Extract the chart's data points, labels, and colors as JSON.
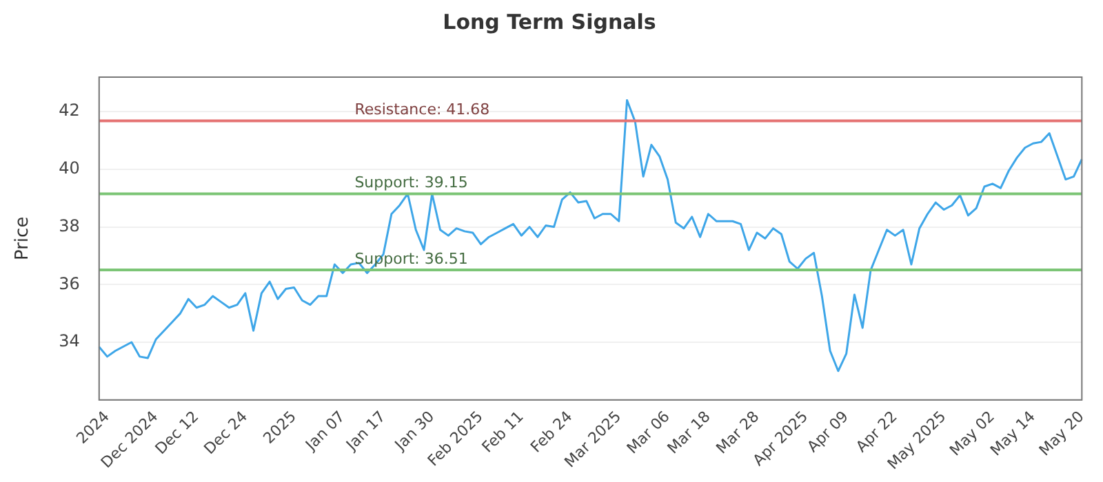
{
  "chart_data": {
    "type": "line",
    "title": "Long Term Signals",
    "ylabel": "Price",
    "categories": [
      null,
      "2024",
      null,
      null,
      null,
      null,
      null,
      "Dec 2024",
      null,
      null,
      null,
      null,
      "Dec 12",
      null,
      null,
      null,
      null,
      null,
      "Dec 24",
      null,
      null,
      null,
      null,
      null,
      "2025",
      null,
      null,
      null,
      null,
      null,
      "Jan 07",
      null,
      null,
      null,
      null,
      "Jan 17",
      null,
      null,
      null,
      null,
      null,
      "Jan 30",
      null,
      null,
      null,
      null,
      null,
      "Feb 2025",
      null,
      null,
      null,
      null,
      "Feb 11",
      null,
      null,
      null,
      null,
      null,
      "Feb 24",
      null,
      null,
      null,
      null,
      null,
      "Mar 2025",
      null,
      null,
      null,
      null,
      null,
      "Mar 06",
      null,
      null,
      null,
      null,
      "Mar 18",
      null,
      null,
      null,
      null,
      null,
      "Mar 28",
      null,
      null,
      null,
      null,
      null,
      "Apr 2025",
      null,
      null,
      null,
      null,
      "Apr 09",
      null,
      null,
      null,
      null,
      null,
      "Apr 22",
      null,
      null,
      null,
      null,
      null,
      "May 2025",
      null,
      null,
      null,
      null,
      null,
      "May 02",
      null,
      null,
      null,
      null,
      "May 14",
      null,
      null,
      null,
      null,
      null,
      "May 20"
    ],
    "series": [
      {
        "color": "#3ea6e8",
        "values": [
          33.84,
          33.5,
          33.7,
          33.85,
          34.0,
          33.5,
          33.45,
          34.1,
          34.4,
          34.7,
          35.0,
          35.5,
          35.2,
          35.3,
          35.6,
          35.4,
          35.2,
          35.3,
          35.7,
          34.4,
          35.7,
          36.1,
          35.5,
          35.85,
          35.9,
          35.45,
          35.3,
          35.6,
          35.6,
          36.7,
          36.4,
          36.7,
          36.75,
          36.4,
          36.7,
          37.05,
          38.45,
          38.75,
          39.15,
          37.9,
          37.2,
          39.15,
          37.9,
          37.7,
          37.95,
          37.85,
          37.8,
          37.4,
          37.65,
          37.8,
          37.95,
          38.1,
          37.7,
          38.0,
          37.65,
          38.05,
          38.0,
          38.95,
          39.2,
          38.85,
          38.9,
          38.3,
          38.45,
          38.45,
          38.2,
          42.4,
          41.65,
          39.75,
          40.85,
          40.45,
          39.65,
          38.15,
          37.95,
          38.35,
          37.65,
          38.45,
          38.2,
          38.2,
          38.2,
          38.1,
          37.2,
          37.8,
          37.6,
          37.95,
          37.75,
          36.8,
          36.55,
          36.9,
          37.1,
          35.6,
          33.7,
          33.0,
          33.6,
          35.65,
          34.5,
          36.5,
          37.2,
          37.9,
          37.7,
          37.9,
          36.7,
          37.95,
          38.45,
          38.85,
          38.6,
          38.75,
          39.1,
          38.4,
          38.65,
          39.4,
          39.5,
          39.35,
          39.95,
          40.4,
          40.75,
          40.9,
          40.95,
          41.25,
          40.45,
          39.65,
          39.75,
          40.35
        ]
      }
    ],
    "ylim": [
      32,
      43.2
    ],
    "yticks": [
      34,
      36,
      38,
      40,
      42
    ],
    "grid": "y",
    "legend": false,
    "marker": "none",
    "line_style": "solid",
    "ref_lines": [
      {
        "axis": "y",
        "value": 41.68,
        "label": "Resistance: 41.68",
        "color": "#e57373"
      },
      {
        "axis": "y",
        "value": 39.15,
        "label": "Support: 39.15",
        "color": "#7cc576"
      },
      {
        "axis": "y",
        "value": 36.51,
        "label": "Support: 36.51",
        "color": "#7cc576"
      }
    ]
  }
}
